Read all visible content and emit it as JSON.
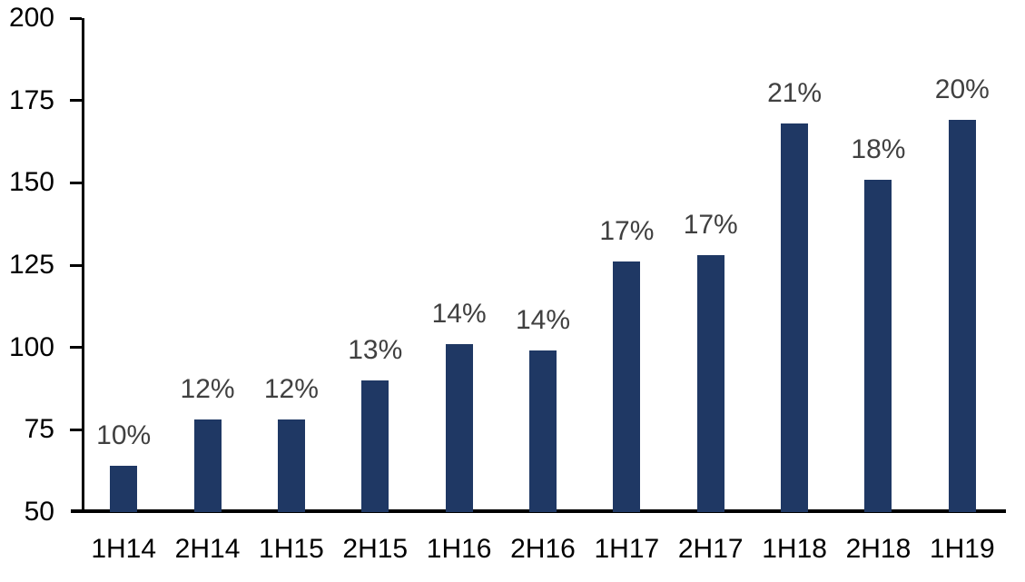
{
  "chart_data": {
    "type": "bar",
    "title": "",
    "xlabel": "",
    "ylabel": "",
    "categories": [
      "1H14",
      "2H14",
      "1H15",
      "2H15",
      "1H16",
      "2H16",
      "1H17",
      "2H17",
      "1H18",
      "2H18",
      "1H19"
    ],
    "values": [
      64,
      78,
      78,
      90,
      101,
      99,
      126,
      128,
      168,
      151,
      169
    ],
    "data_labels": [
      "10%",
      "12%",
      "12%",
      "13%",
      "14%",
      "14%",
      "17%",
      "17%",
      "21%",
      "18%",
      "20%"
    ],
    "ylim": [
      50,
      200
    ],
    "ytick_interval": 25,
    "yticks": [
      "200",
      "175",
      "150",
      "125",
      "100",
      "75",
      "50"
    ],
    "grid": false,
    "legend": false,
    "data_label_position": "above-bars",
    "colors": {
      "bar": "#1F3864",
      "data_label": "#404040",
      "axis": "#000000",
      "tick_label": "#000000",
      "background": "#FFFFFF"
    }
  }
}
